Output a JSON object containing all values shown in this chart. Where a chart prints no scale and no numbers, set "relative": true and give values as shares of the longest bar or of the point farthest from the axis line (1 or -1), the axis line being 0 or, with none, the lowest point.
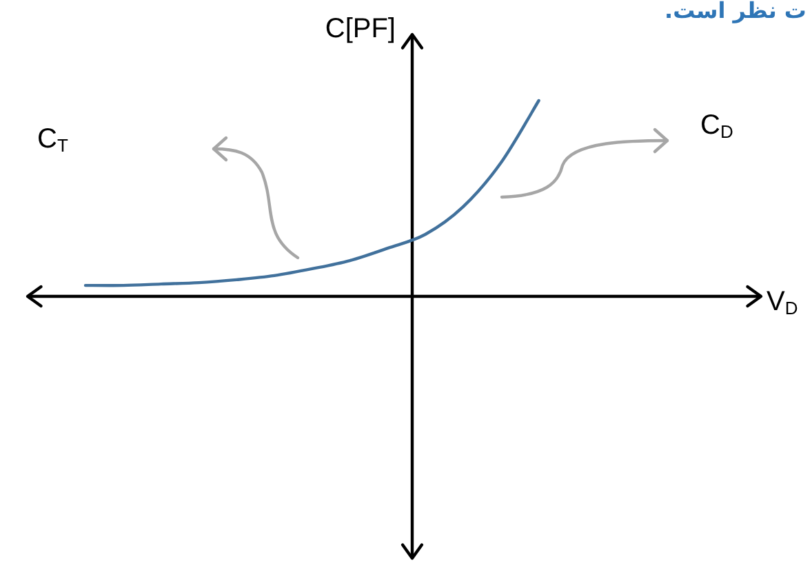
{
  "chart_data": {
    "type": "line",
    "title": "ت نظر است.",
    "ylabel": "C[PF]",
    "annotations": [
      "C$_{T}$",
      "C$_{D}$",
      "V$_{D}$"
    ],
    "categories": [
      null,
      null,
      null,
      null,
      null,
      null,
      null,
      null,
      null,
      null,
      null,
      null,
      null
    ],
    "series": [
      {
        "color": "#41719c",
        "values": [
          0.056,
          0.056,
          0.063,
          0.07,
          0.085,
          0.106,
          0.141,
          0.183,
          0.246,
          0.317,
          0.458,
          0.683,
          1
        ]
      }
    ],
    "relative": true
  }
}
